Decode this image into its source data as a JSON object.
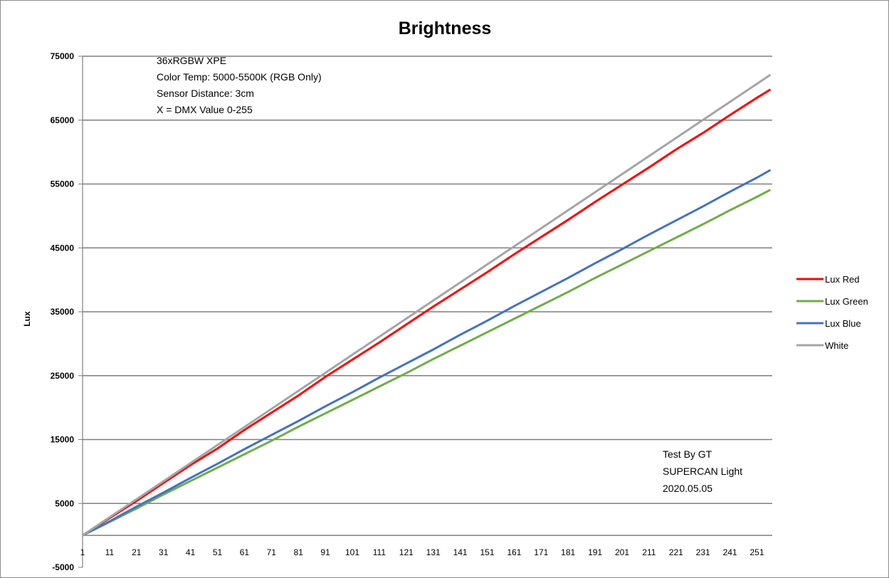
{
  "chart_data": {
    "type": "line",
    "title": "Brightness",
    "xlabel": "",
    "ylabel": "Lux",
    "ylim": [
      -5000,
      75000
    ],
    "yticks": [
      -5000,
      5000,
      15000,
      25000,
      35000,
      45000,
      55000,
      65000,
      75000
    ],
    "ytick_labels": [
      "-5000",
      "5000",
      "15000",
      "25000",
      "35000",
      "45000",
      "55000",
      "65000",
      "75000"
    ],
    "xlim": [
      1,
      256
    ],
    "xticks": [
      1,
      11,
      21,
      31,
      41,
      51,
      61,
      71,
      81,
      91,
      101,
      111,
      121,
      131,
      141,
      151,
      161,
      171,
      181,
      191,
      201,
      211,
      221,
      231,
      241,
      251
    ],
    "xtick_labels": [
      "1",
      "11",
      "21",
      "31",
      "41",
      "51",
      "61",
      "71",
      "81",
      "91",
      "101",
      "111",
      "121",
      "131",
      "141",
      "151",
      "161",
      "171",
      "181",
      "191",
      "201",
      "211",
      "221",
      "231",
      "241",
      "251"
    ],
    "grid": "horizontal",
    "legend_position": "right",
    "series": [
      {
        "name": "Lux Red",
        "color": "#ff0000",
        "x": [
          1,
          11,
          21,
          31,
          41,
          51,
          61,
          71,
          81,
          91,
          101,
          111,
          121,
          131,
          141,
          151,
          161,
          171,
          181,
          191,
          201,
          211,
          221,
          231,
          241,
          251,
          256
        ],
        "y": [
          0,
          2700,
          5400,
          8200,
          11000,
          13600,
          16500,
          19200,
          21900,
          24800,
          27500,
          30200,
          33000,
          35800,
          38500,
          41200,
          44000,
          46700,
          49400,
          52200,
          54900,
          57600,
          60400,
          63000,
          65800,
          68500,
          69800
        ]
      },
      {
        "name": "Lux Green",
        "color": "#70ad47",
        "x": [
          1,
          11,
          21,
          31,
          41,
          51,
          61,
          71,
          81,
          91,
          101,
          111,
          121,
          131,
          141,
          151,
          161,
          171,
          181,
          191,
          201,
          211,
          221,
          231,
          241,
          251,
          256
        ],
        "y": [
          0,
          2100,
          4200,
          6400,
          8500,
          10600,
          12700,
          14800,
          17000,
          19100,
          21200,
          23300,
          25400,
          27600,
          29700,
          31800,
          33900,
          36000,
          38100,
          40300,
          42400,
          44500,
          46600,
          48700,
          50900,
          53000,
          54100
        ]
      },
      {
        "name": "Lux Blue",
        "color": "#4472c4",
        "x": [
          1,
          11,
          21,
          31,
          41,
          51,
          61,
          71,
          81,
          91,
          101,
          111,
          121,
          131,
          141,
          151,
          161,
          171,
          181,
          191,
          201,
          211,
          221,
          231,
          241,
          251,
          256
        ],
        "y": [
          0,
          2200,
          4500,
          6700,
          9000,
          11200,
          13500,
          15700,
          17900,
          20200,
          22400,
          24700,
          26900,
          29100,
          31400,
          33600,
          35900,
          38100,
          40300,
          42600,
          44800,
          47100,
          49300,
          51500,
          53800,
          56000,
          57200
        ]
      },
      {
        "name": "White",
        "color": "#a5a5a5",
        "x": [
          1,
          256
        ],
        "y": [
          0,
          72100
        ]
      }
    ]
  },
  "annotations": {
    "specs": [
      "36xRGBW XPE",
      "Color Temp: 5000-5500K  (RGB Only)",
      "Sensor Distance: 3cm",
      "X = DMX Value 0-255"
    ],
    "credit": [
      "Test By GT",
      "SUPERCAN Light",
      "2020.05.05"
    ]
  }
}
